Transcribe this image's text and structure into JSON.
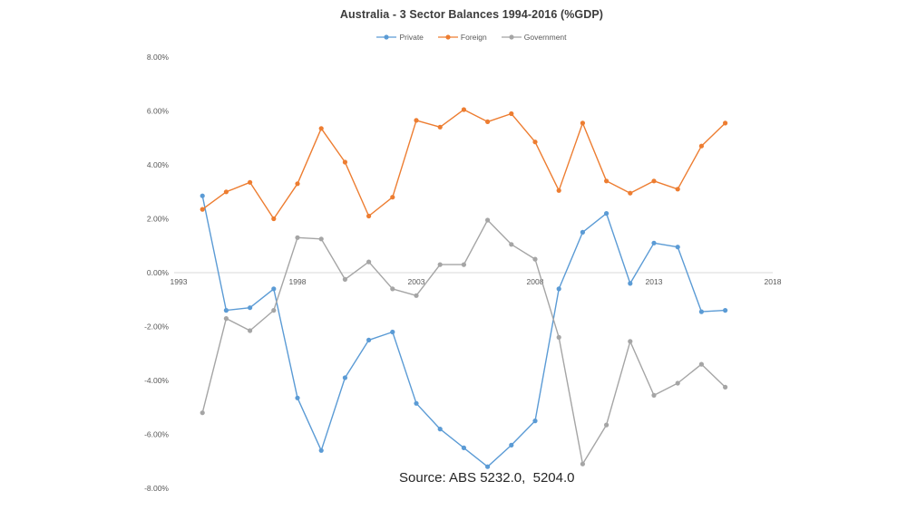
{
  "chart_data": {
    "type": "line",
    "title": "Australia - 3 Sector Balances 1994-2016 (%GDP)",
    "xlabel": "",
    "ylabel": "",
    "x": [
      1994,
      1995,
      1996,
      1997,
      1998,
      1999,
      2000,
      2001,
      2002,
      2003,
      2004,
      2005,
      2006,
      2007,
      2008,
      2009,
      2010,
      2011,
      2012,
      2013,
      2014,
      2015,
      2016
    ],
    "series": [
      {
        "name": "Private",
        "color": "#5B9BD5",
        "values": [
          2.85,
          -1.4,
          -1.3,
          -0.6,
          -4.65,
          -6.6,
          -3.9,
          -2.5,
          -2.2,
          -4.85,
          -5.8,
          -6.5,
          -7.2,
          -6.4,
          -5.5,
          -0.6,
          1.5,
          2.2,
          -0.4,
          1.1,
          0.95,
          -1.45,
          -1.4
        ]
      },
      {
        "name": "Foreign",
        "color": "#ED7D31",
        "values": [
          2.35,
          3.0,
          3.35,
          2.0,
          3.3,
          5.35,
          4.1,
          2.1,
          2.8,
          5.65,
          5.4,
          6.05,
          5.6,
          5.9,
          4.85,
          3.05,
          5.55,
          3.4,
          2.95,
          3.4,
          3.1,
          4.7,
          5.55
        ]
      },
      {
        "name": "Government",
        "color": "#A5A5A5",
        "values": [
          -5.2,
          -1.7,
          -2.15,
          -1.4,
          1.3,
          1.25,
          -0.25,
          0.4,
          -0.6,
          -0.85,
          0.3,
          0.3,
          1.95,
          1.05,
          0.5,
          -2.4,
          -7.1,
          -5.65,
          -2.55,
          -4.55,
          -4.1,
          -3.4,
          -4.25
        ]
      }
    ],
    "xlim": [
      1993,
      2018
    ],
    "ylim": [
      -8,
      8
    ],
    "x_ticks": [
      {
        "v": 1993,
        "label": "1993"
      },
      {
        "v": 1998,
        "label": "1998"
      },
      {
        "v": 2003,
        "label": "2003"
      },
      {
        "v": 2008,
        "label": "2008"
      },
      {
        "v": 2013,
        "label": "2013"
      },
      {
        "v": 2018,
        "label": "2018"
      }
    ],
    "y_ticks": [
      {
        "v": 8,
        "label": "8.00%"
      },
      {
        "v": 6,
        "label": "6.00%"
      },
      {
        "v": 4,
        "label": "4.00%"
      },
      {
        "v": 2,
        "label": "2.00%"
      },
      {
        "v": 0,
        "label": "0.00%"
      },
      {
        "v": -2,
        "label": "-2.00%"
      },
      {
        "v": -4,
        "label": "-4.00%"
      },
      {
        "v": -6,
        "label": "-6.00%"
      },
      {
        "v": -8,
        "label": "-8.00%"
      }
    ],
    "grid": false,
    "legend_position": "top",
    "axis_color": "#d9d9d9",
    "tick_color": "#595959"
  },
  "source_note": "Source: ABS 5232.0,  5204.0"
}
